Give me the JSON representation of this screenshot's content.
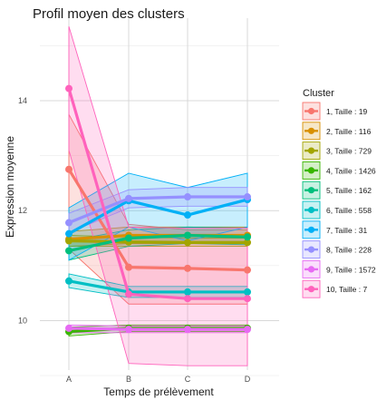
{
  "chart_data": {
    "type": "line",
    "title": "Profil moyen des clusters",
    "xlabel": "Temps de prélèvement",
    "ylabel": "Expression moyenne",
    "categories": [
      "A",
      "B",
      "C",
      "D"
    ],
    "ylim": [
      9.1,
      15.5
    ],
    "yticks": [
      10,
      12,
      14
    ],
    "grid": true,
    "legend_title": "Cluster",
    "legend_position": "right",
    "series": [
      {
        "name": "1, Taille : 19",
        "color": "#F8766D",
        "values": [
          12.75,
          10.97,
          10.95,
          10.92
        ],
        "lower": [
          11.3,
          10.3,
          10.3,
          10.3
        ],
        "upper": [
          13.75,
          11.75,
          11.65,
          11.65
        ]
      },
      {
        "name": "2, Taille : 116",
        "color": "#D89000",
        "values": [
          11.48,
          11.55,
          11.55,
          11.55
        ],
        "lower": [
          11.35,
          11.4,
          11.4,
          11.4
        ],
        "upper": [
          11.62,
          11.7,
          11.7,
          11.7
        ]
      },
      {
        "name": "3, Taille : 729",
        "color": "#A3A500",
        "values": [
          11.45,
          11.43,
          11.42,
          11.42
        ],
        "lower": [
          11.35,
          11.35,
          11.35,
          11.35
        ],
        "upper": [
          11.55,
          11.52,
          11.5,
          11.5
        ]
      },
      {
        "name": "4, Taille : 1426",
        "color": "#39B600",
        "values": [
          9.8,
          9.86,
          9.86,
          9.86
        ],
        "lower": [
          9.72,
          9.8,
          9.8,
          9.8
        ],
        "upper": [
          9.88,
          9.92,
          9.92,
          9.92
        ]
      },
      {
        "name": "5, Taille : 162",
        "color": "#00BF7D",
        "values": [
          11.27,
          11.5,
          11.55,
          11.52
        ],
        "lower": [
          11.1,
          11.35,
          11.4,
          11.38
        ],
        "upper": [
          11.45,
          11.65,
          11.7,
          11.68
        ]
      },
      {
        "name": "6, Taille : 558",
        "color": "#00BFC4",
        "values": [
          10.72,
          10.52,
          10.52,
          10.52
        ],
        "lower": [
          10.6,
          10.42,
          10.42,
          10.42
        ],
        "upper": [
          10.85,
          10.62,
          10.62,
          10.62
        ]
      },
      {
        "name": "7, Taille : 31",
        "color": "#00B0F6",
        "values": [
          11.58,
          12.18,
          11.92,
          12.2
        ],
        "lower": [
          11.1,
          11.7,
          11.45,
          11.7
        ],
        "upper": [
          12.05,
          12.68,
          12.42,
          12.68
        ]
      },
      {
        "name": "8, Taille : 228",
        "color": "#9590FF",
        "values": [
          11.78,
          12.22,
          12.25,
          12.25
        ],
        "lower": [
          11.6,
          12.05,
          12.08,
          12.08
        ],
        "upper": [
          11.95,
          12.38,
          12.42,
          12.42
        ]
      },
      {
        "name": "9, Taille : 1572",
        "color": "#E76BF3",
        "values": [
          9.86,
          9.84,
          9.84,
          9.84
        ],
        "lower": [
          9.78,
          9.78,
          9.78,
          9.78
        ],
        "upper": [
          9.92,
          9.9,
          9.9,
          9.9
        ]
      },
      {
        "name": "10, Taille : 7",
        "color": "#FF62BC",
        "values": [
          14.22,
          10.48,
          10.4,
          10.4
        ],
        "lower": [
          13.1,
          9.22,
          9.18,
          9.18
        ],
        "upper": [
          15.35,
          11.7,
          11.68,
          11.68
        ]
      }
    ]
  }
}
